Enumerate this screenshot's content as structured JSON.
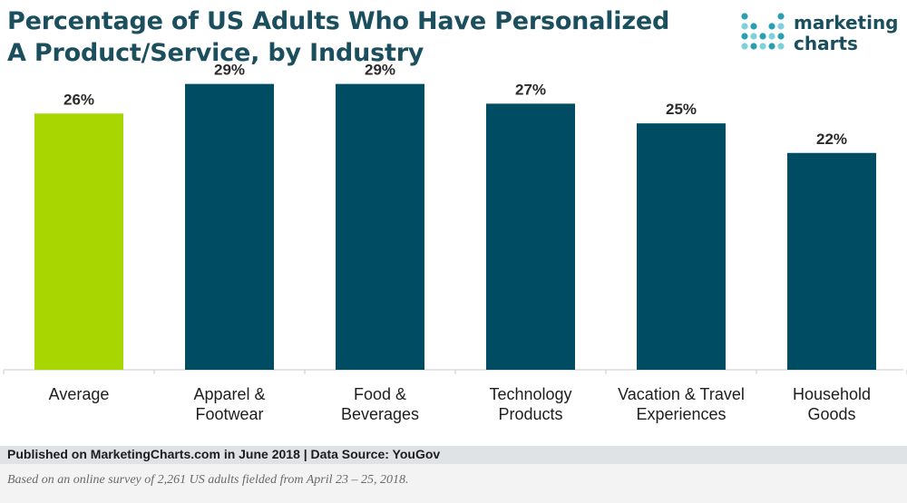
{
  "title_lines": [
    "Percentage of US Adults Who Have Personalized",
    "A Product/Service, by Industry"
  ],
  "logo": {
    "line1": "marketing",
    "line2": "charts"
  },
  "colors": {
    "average": "#a8d600",
    "industry": "#004c62",
    "title": "#1c4f5e"
  },
  "chart_data": {
    "type": "bar",
    "title": "Percentage of US Adults Who Have Personalized A Product/Service, by Industry",
    "categories": [
      [
        "Average"
      ],
      [
        "Apparel &",
        "Footwear"
      ],
      [
        "Food &",
        "Beverages"
      ],
      [
        "Technology",
        "Products"
      ],
      [
        "Vacation & Travel",
        "Experiences"
      ],
      [
        "Household",
        "Goods"
      ]
    ],
    "values": [
      26,
      29,
      29,
      27,
      25,
      22
    ],
    "value_labels": [
      "26%",
      "29%",
      "29%",
      "27%",
      "25%",
      "22%"
    ],
    "ylim": [
      0,
      32
    ],
    "grid": false,
    "legend": "none"
  },
  "footer": {
    "source": "Published on MarketingCharts.com in June 2018 | Data Source: YouGov",
    "note": "Based on an online survey of 2,261 US adults fielded from April 23 – 25, 2018."
  }
}
